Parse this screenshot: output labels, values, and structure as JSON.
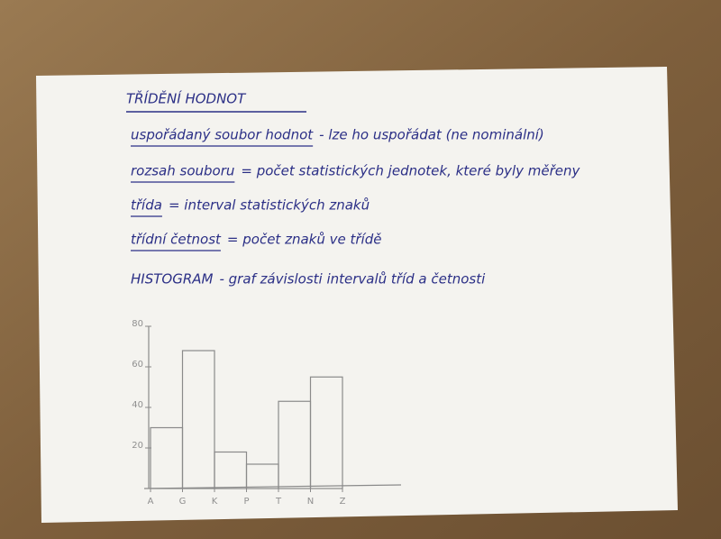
{
  "notes": {
    "title": "TŘÍDĚNÍ HODNOT",
    "lines": [
      {
        "term": "uspořádaný soubor hodnot",
        "text": "- lze ho uspořádat (ne nominální)"
      },
      {
        "term": "rozsah souboru",
        "text": "= počet statistických jednotek, které byly měřeny"
      },
      {
        "term": "třída",
        "text": "= interval statistických znaků"
      },
      {
        "term": "třídní četnost",
        "text": "= počet znaků ve třídě"
      },
      {
        "term": "HISTOGRAM",
        "text": "- graf závislosti intervalů tříd a četnosti"
      }
    ]
  },
  "chart_data": {
    "type": "histogram",
    "bins": [
      "A",
      "G",
      "K",
      "P",
      "T",
      "N",
      "Z"
    ],
    "values": [
      30,
      68,
      18,
      12,
      43,
      55
    ],
    "ylim": [
      0,
      80
    ],
    "yticks": [
      20,
      40,
      60,
      80
    ],
    "color": "#8a8a8a"
  }
}
